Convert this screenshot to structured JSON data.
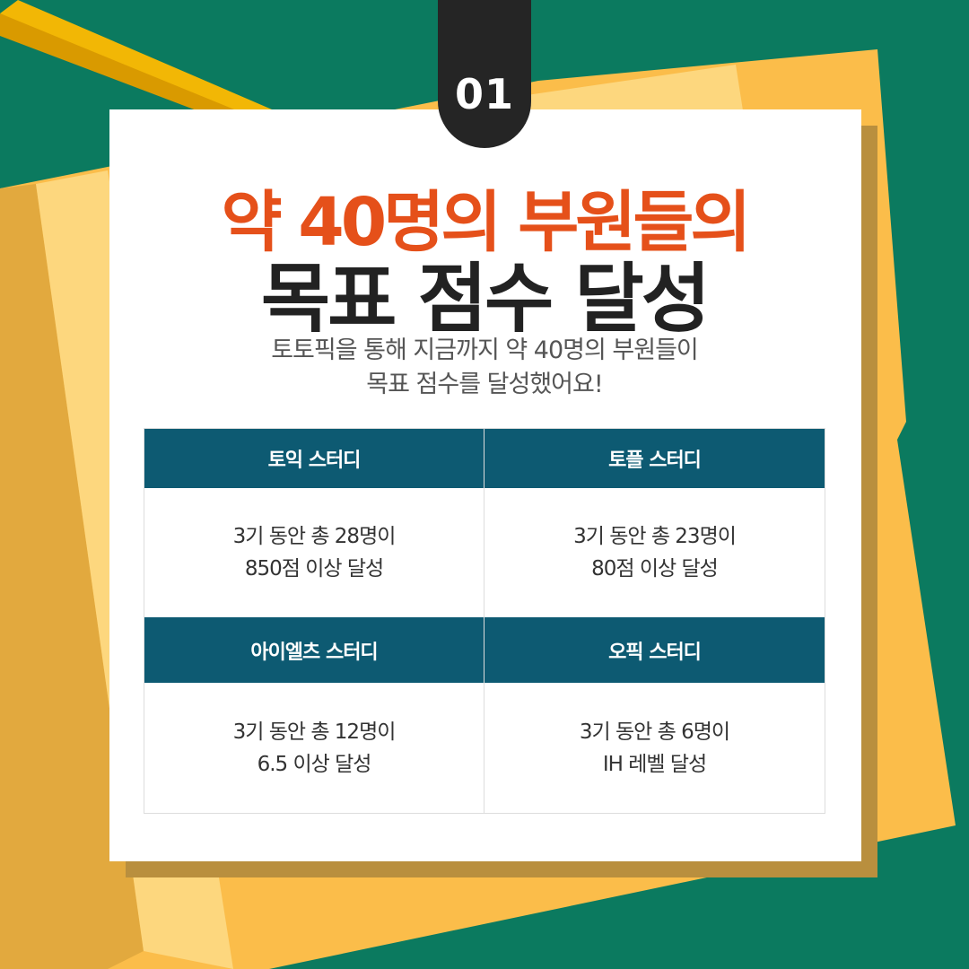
{
  "badge": "01",
  "title_line1": "약 40명의 부원들의",
  "title_line2": "목표 점수 달성",
  "subtitle": [
    "토토픽을 통해 지금까지 약 40명의 부원들이",
    "목표 점수를 달성했어요!"
  ],
  "studies": [
    {
      "name": "토익 스터디",
      "lines": [
        "3기 동안 총 28명이",
        "850점 이상 달성"
      ]
    },
    {
      "name": "토플 스터디",
      "lines": [
        "3기 동안 총 23명이",
        "80점 이상 달성"
      ]
    },
    {
      "name": "아이엘츠 스터디",
      "lines": [
        "3기 동안 총 12명이",
        "6.5 이상 달성"
      ]
    },
    {
      "name": "오픽 스터디",
      "lines": [
        "3기 동안 총 6명이",
        "IH 레벨 달성"
      ]
    }
  ],
  "colors": {
    "background": "#0b7a5f",
    "title_accent": "#e5501a",
    "table_header": "#0d5a72",
    "folder": "#fbbd4a"
  }
}
